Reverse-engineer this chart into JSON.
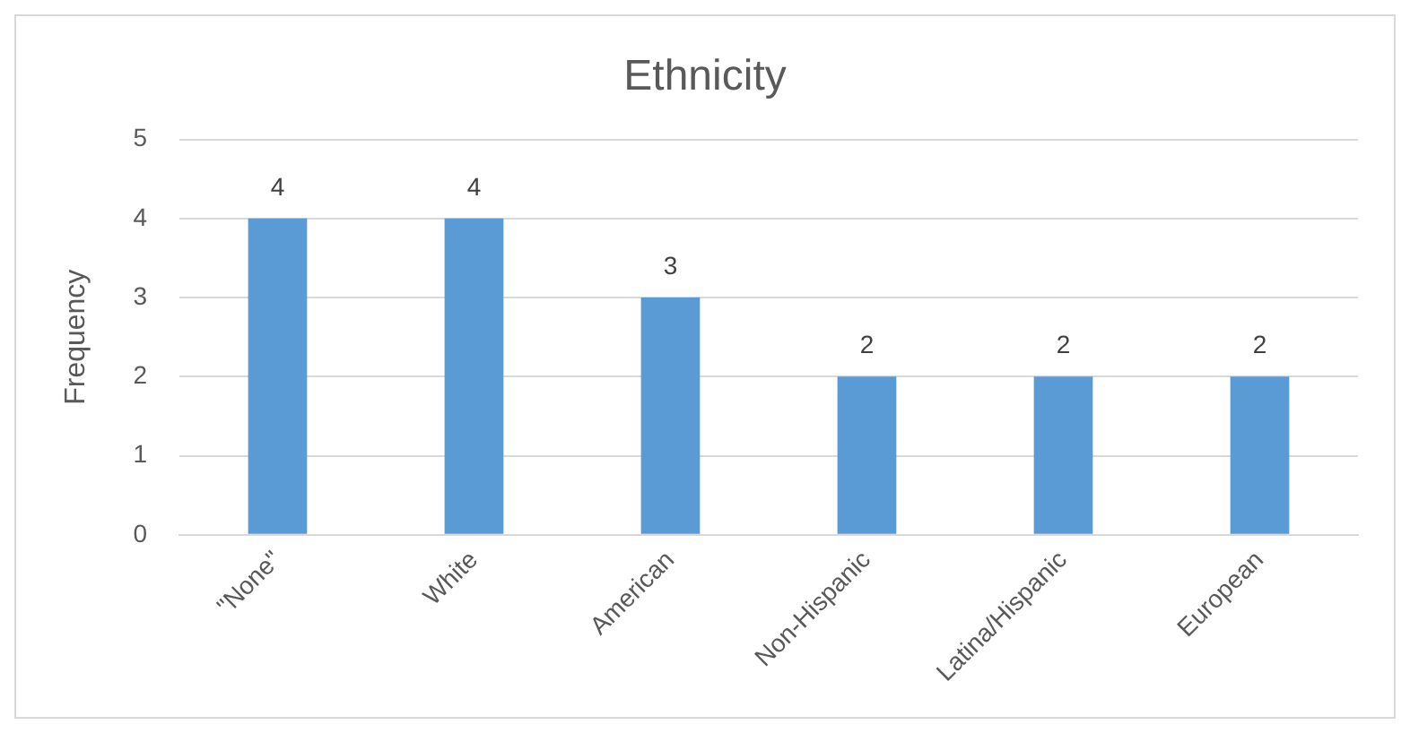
{
  "chart_data": {
    "type": "bar",
    "title": "Ethnicity",
    "ylabel": "Frequency",
    "categories": [
      "\"None\"",
      "White",
      "American",
      "Non-Hispanic",
      "Latina/Hispanic",
      "European"
    ],
    "values": [
      4,
      4,
      3,
      2,
      2,
      2
    ],
    "color": "#5b9bd5",
    "ylim": [
      0,
      5
    ],
    "yticks": [
      0,
      1,
      2,
      3,
      4,
      5
    ],
    "grid": "y",
    "data_labels": true,
    "legend": false
  }
}
